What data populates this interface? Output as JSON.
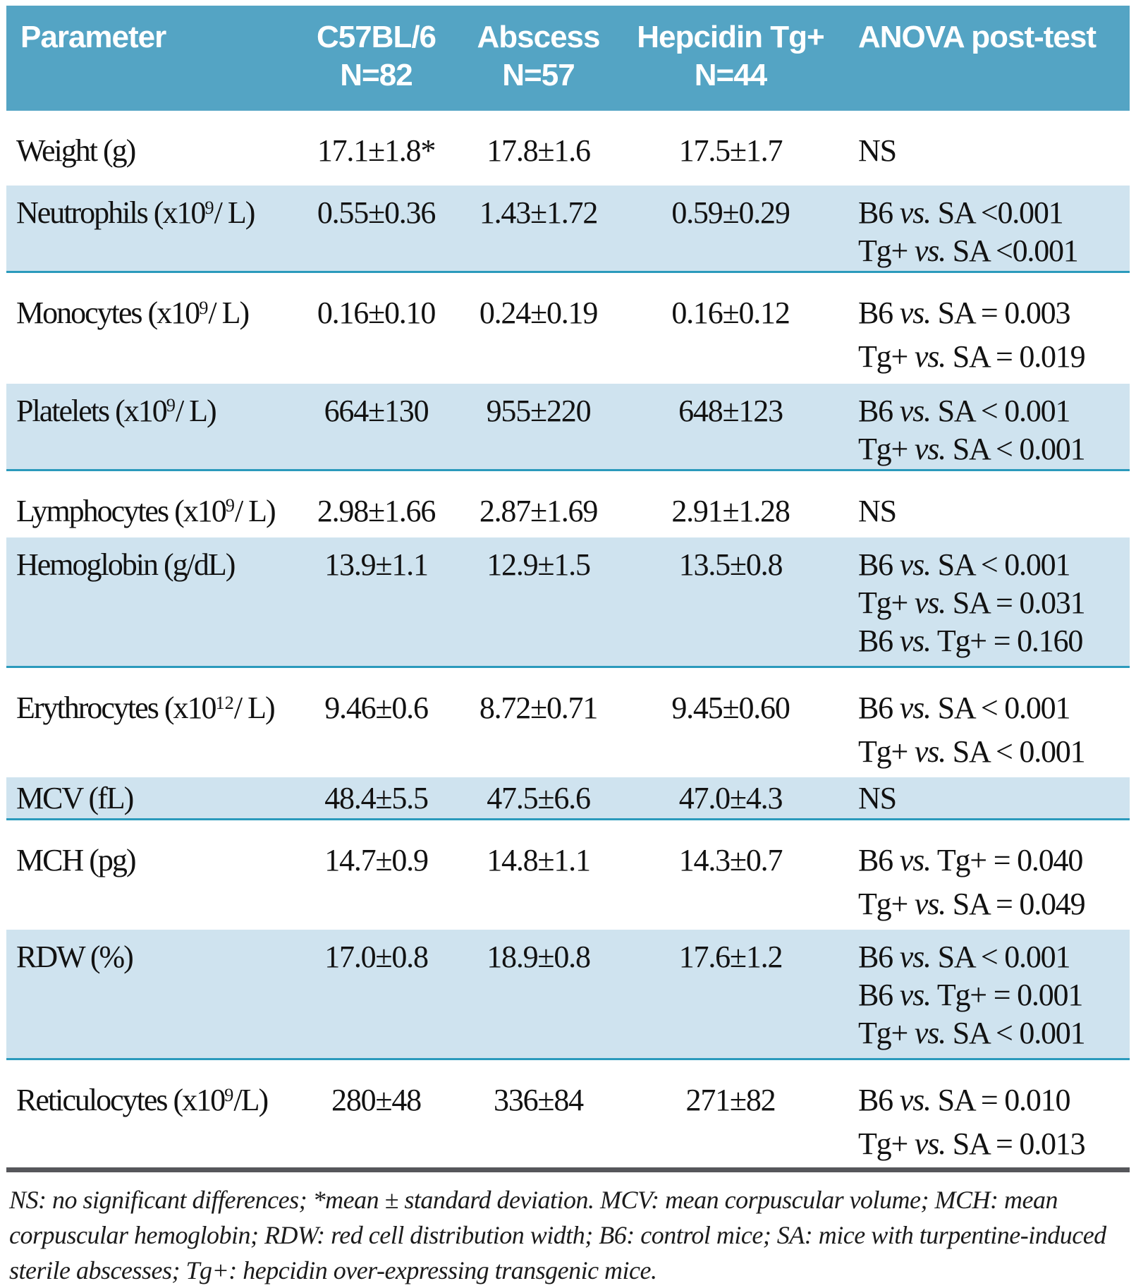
{
  "colors": {
    "header_bg": "#54a4c4",
    "row_band": "#cfe3ef",
    "divider": "#2b9abc",
    "footnote_rule": "#56575b",
    "header_text": "#ffffff",
    "body_text": "#121212"
  },
  "table": {
    "header": {
      "param": "Parameter",
      "groups": [
        {
          "name": "C57BL/6",
          "n": "N=82"
        },
        {
          "name": "Abscess",
          "n": "N=57"
        },
        {
          "name": "Hepcidin Tg+",
          "n": "N=44"
        }
      ],
      "anova": "ANOVA post-test"
    },
    "rows": [
      {
        "param": {
          "pre": "Weight (g)",
          "sup": "",
          "post": ""
        },
        "values": [
          "17.1±1.8*",
          "17.8±1.6",
          "17.5±1.7"
        ],
        "anova": [
          "NS"
        ]
      },
      {
        "param": {
          "pre": "Neutrophils (x10",
          "sup": "9",
          "post": "/ L)"
        },
        "values": [
          "0.55±0.36",
          "1.43±1.72",
          "0.59±0.29"
        ],
        "anova": [
          "B6 vs. SA <0.001",
          "Tg+ vs. SA <0.001"
        ]
      },
      {
        "param": {
          "pre": "Monocytes (x10",
          "sup": "9",
          "post": "/ L)"
        },
        "values": [
          "0.16±0.10",
          "0.24±0.19",
          "0.16±0.12"
        ],
        "anova": [
          "B6 vs. SA = 0.003",
          "Tg+ vs. SA = 0.019"
        ]
      },
      {
        "param": {
          "pre": "Platelets (x10",
          "sup": "9",
          "post": "/ L)"
        },
        "values": [
          "664±130",
          "955±220",
          "648±123"
        ],
        "anova": [
          "B6 vs. SA < 0.001",
          "Tg+ vs. SA < 0.001"
        ]
      },
      {
        "param": {
          "pre": "Lymphocytes (x10",
          "sup": "9",
          "post": "/ L)"
        },
        "values": [
          "2.98±1.66",
          "2.87±1.69",
          "2.91±1.28"
        ],
        "anova": [
          "NS"
        ]
      },
      {
        "param": {
          "pre": "Hemoglobin (g/dL)",
          "sup": "",
          "post": ""
        },
        "values": [
          "13.9±1.1",
          "12.9±1.5",
          "13.5±0.8"
        ],
        "anova": [
          "B6 vs. SA < 0.001",
          "Tg+ vs. SA = 0.031",
          "B6 vs. Tg+ = 0.160"
        ]
      },
      {
        "param": {
          "pre": "Erythrocytes (x10",
          "sup": "12",
          "post": "/ L)"
        },
        "values": [
          "9.46±0.6",
          "8.72±0.71",
          "9.45±0.60"
        ],
        "anova": [
          "B6 vs. SA < 0.001",
          "Tg+ vs. SA < 0.001"
        ]
      },
      {
        "param": {
          "pre": "MCV (fL)",
          "sup": "",
          "post": ""
        },
        "values": [
          "48.4±5.5",
          "47.5±6.6",
          "47.0±4.3"
        ],
        "anova": [
          "NS"
        ]
      },
      {
        "param": {
          "pre": "MCH (pg)",
          "sup": "",
          "post": ""
        },
        "values": [
          "14.7±0.9",
          "14.8±1.1",
          "14.3±0.7"
        ],
        "anova": [
          "B6 vs. Tg+ = 0.040",
          "Tg+ vs. SA = 0.049"
        ]
      },
      {
        "param": {
          "pre": "RDW (%)",
          "sup": "",
          "post": ""
        },
        "values": [
          "17.0±0.8",
          "18.9±0.8",
          "17.6±1.2"
        ],
        "anova": [
          "B6 vs. SA < 0.001",
          "B6 vs. Tg+ = 0.001",
          "Tg+ vs. SA < 0.001"
        ]
      },
      {
        "param": {
          "pre": "Reticulocytes (x10",
          "sup": "9",
          "post": "/L)"
        },
        "values": [
          "280±48",
          "336±84",
          "271±82"
        ],
        "anova": [
          "B6 vs. SA = 0.010",
          "Tg+ vs. SA = 0.013"
        ]
      }
    ],
    "footnote": "NS: no significant differences; *mean ± standard deviation. MCV: mean corpuscular volume; MCH: mean corpuscular hemoglobin; RDW: red cell distribution width; B6: control mice; SA: mice with turpentine-induced sterile abscesses; Tg+: hepcidin over-expressing transgenic mice."
  }
}
